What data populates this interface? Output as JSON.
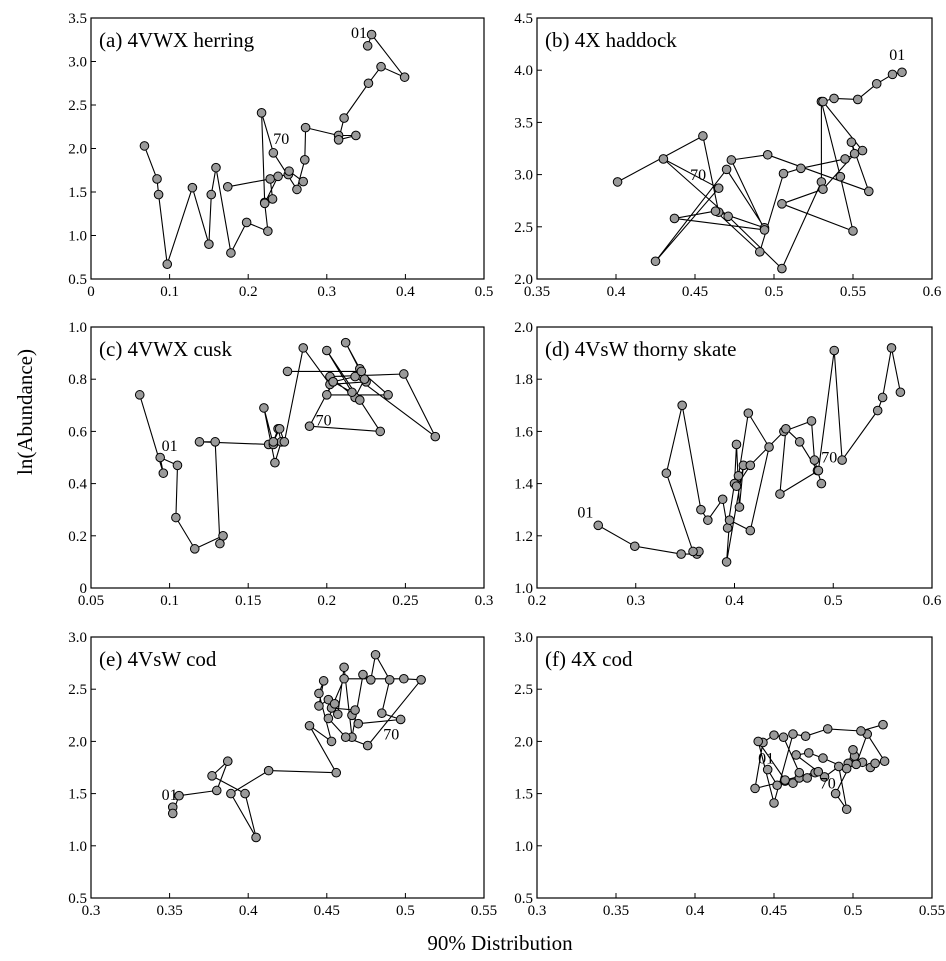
{
  "figure": {
    "ylabel": "ln(Abundance)",
    "xlabel": "90% Distribution"
  },
  "chart_data": [
    {
      "type": "line",
      "title": "(a)  4VWX herring",
      "xlim": [
        0,
        0.5
      ],
      "ylim": [
        0.5,
        3.5
      ],
      "xticks": [
        0,
        0.1,
        0.2,
        0.3,
        0.4,
        0.5
      ],
      "xtick_labels": [
        "0",
        "0.1",
        "0.2",
        "0.3",
        "0.4",
        "0.5"
      ],
      "yticks": [
        0.5,
        1.0,
        1.5,
        2.0,
        2.5,
        3.0,
        3.5
      ],
      "ytick_labels": [
        "0.5",
        "1.0",
        "1.5",
        "2.0",
        "2.5",
        "3.0",
        "3.5"
      ],
      "series": [
        {
          "x": [
            0.174,
            0.228,
            0.231,
            0.221,
            0.217,
            0.232,
            0.262,
            0.272,
            0.273,
            0.315,
            0.337,
            0.315,
            0.322,
            0.353,
            0.369,
            0.399,
            0.357,
            0.352
          ],
          "y": [
            1.56,
            1.65,
            1.42,
            1.38,
            2.41,
            1.95,
            1.53,
            1.87,
            2.24,
            2.15,
            2.15,
            2.1,
            2.35,
            2.75,
            2.94,
            2.82,
            3.31,
            3.18
          ]
        },
        {
          "x": [
            0.068,
            0.084,
            0.086,
            0.097,
            0.129,
            0.15,
            0.153,
            0.159,
            0.178,
            0.198,
            0.225,
            0.221,
            0.238,
            0.251,
            0.252,
            0.27
          ],
          "y": [
            2.03,
            1.65,
            1.47,
            0.67,
            1.55,
            0.9,
            1.47,
            1.78,
            0.8,
            1.15,
            1.05,
            1.37,
            1.68,
            1.7,
            1.74,
            1.62
          ]
        }
      ],
      "annotations": [
        {
          "text": "01",
          "x": 0.341,
          "y": 3.27
        },
        {
          "text": "70",
          "x": 0.242,
          "y": 2.05
        }
      ]
    },
    {
      "type": "line",
      "title": "(b)  4X haddock",
      "xlim": [
        0.35,
        0.6
      ],
      "ylim": [
        2.0,
        4.5
      ],
      "xticks": [
        0.35,
        0.4,
        0.45,
        0.5,
        0.55,
        0.6
      ],
      "xtick_labels": [
        "0.35",
        "0.4",
        "0.45",
        "0.5",
        "0.55",
        "0.6"
      ],
      "yticks": [
        2.0,
        2.5,
        3.0,
        3.5,
        4.0,
        4.5
      ],
      "ytick_labels": [
        "2.0",
        "2.5",
        "3.0",
        "3.5",
        "4.0",
        "4.5"
      ],
      "series": [
        {
          "x": [
            0.401,
            0.455,
            0.465,
            0.494,
            0.47,
            0.425,
            0.465,
            0.43,
            0.471,
            0.505,
            0.53,
            0.53,
            0.542,
            0.55,
            0.505,
            0.531,
            0.551,
            0.549,
            0.56,
            0.496,
            0.473,
            0.494,
            0.437,
            0.463,
            0.491,
            0.506,
            0.517,
            0.545,
            0.556,
            0.531,
            0.538,
            0.553,
            0.565,
            0.575,
            0.581
          ],
          "y": [
            2.93,
            3.37,
            2.64,
            2.49,
            3.05,
            2.17,
            2.87,
            3.15,
            2.6,
            2.1,
            2.93,
            3.7,
            2.98,
            2.46,
            2.72,
            2.86,
            3.2,
            3.31,
            2.84,
            3.19,
            3.14,
            2.47,
            2.58,
            2.65,
            2.26,
            3.01,
            3.06,
            3.15,
            3.23,
            3.7,
            3.73,
            3.72,
            3.87,
            3.96,
            3.98
          ]
        }
      ],
      "annotations": [
        {
          "text": "01",
          "x": 0.578,
          "y": 4.1
        },
        {
          "text": "70",
          "x": 0.452,
          "y": 2.95
        }
      ]
    },
    {
      "type": "line",
      "title": "(c)  4VWX cusk",
      "xlim": [
        0.05,
        0.3
      ],
      "ylim": [
        0,
        1.0
      ],
      "xticks": [
        0.05,
        0.1,
        0.15,
        0.2,
        0.25,
        0.3
      ],
      "xtick_labels": [
        "0.05",
        "0.1",
        "0.15",
        "0.2",
        "0.25",
        "0.3"
      ],
      "yticks": [
        0,
        0.2,
        0.4,
        0.6,
        0.8,
        1.0
      ],
      "ytick_labels": [
        "0",
        "0.2",
        "0.4",
        "0.6",
        "0.8",
        "1.0"
      ],
      "series": [
        {
          "x": [
            0.081,
            0.096,
            0.094,
            0.105,
            0.104,
            0.116,
            0.134,
            0.132,
            0.129,
            0.119,
            0.163,
            0.166,
            0.16,
            0.167,
            0.171,
            0.169,
            0.166,
            0.17,
            0.173,
            0.185,
            0.202,
            0.225,
            0.221,
            0.212,
            0.224,
            0.218,
            0.202,
            0.249,
            0.269,
            0.218,
            0.204,
            0.216,
            0.2,
            0.221,
            0.234,
            0.189,
            0.204,
            0.2,
            0.239,
            0.222,
            0.175
          ],
          "y": [
            0.74,
            0.44,
            0.5,
            0.47,
            0.27,
            0.15,
            0.2,
            0.17,
            0.56,
            0.56,
            0.55,
            0.55,
            0.69,
            0.48,
            0.56,
            0.61,
            0.56,
            0.61,
            0.56,
            0.92,
            0.78,
            0.79,
            0.84,
            0.94,
            0.8,
            0.73,
            0.81,
            0.82,
            0.58,
            0.81,
            0.79,
            0.75,
            0.91,
            0.72,
            0.6,
            0.62,
            0.79,
            0.74,
            0.74,
            0.83,
            0.83
          ]
        }
      ],
      "annotations": [
        {
          "text": "01",
          "x": 0.1,
          "y": 0.525
        },
        {
          "text": "70",
          "x": 0.198,
          "y": 0.622
        }
      ]
    },
    {
      "type": "line",
      "title": "(d)  4VsW thorny skate",
      "xlim": [
        0.2,
        0.6
      ],
      "ylim": [
        1.0,
        2.0
      ],
      "xticks": [
        0.2,
        0.3,
        0.4,
        0.5,
        0.6
      ],
      "xtick_labels": [
        "0.2",
        "0.3",
        "0.4",
        "0.5",
        "0.6"
      ],
      "yticks": [
        1.0,
        1.2,
        1.4,
        1.6,
        1.8,
        2.0
      ],
      "ytick_labels": [
        "1.0",
        "1.2",
        "1.4",
        "1.6",
        "1.8",
        "2.0"
      ],
      "series": [
        {
          "x": [
            0.262,
            0.299,
            0.346,
            0.362,
            0.364,
            0.358,
            0.331,
            0.347,
            0.366,
            0.373,
            0.388,
            0.393,
            0.4,
            0.402,
            0.405,
            0.409,
            0.392,
            0.395,
            0.416,
            0.435,
            0.414,
            0.404,
            0.402,
            0.416,
            0.45,
            0.478,
            0.481,
            0.488,
            0.484,
            0.466,
            0.452,
            0.446,
            0.485,
            0.501,
            0.509,
            0.545,
            0.55,
            0.559,
            0.568
          ],
          "y": [
            1.24,
            1.16,
            1.13,
            1.13,
            1.14,
            1.14,
            1.44,
            1.7,
            1.3,
            1.26,
            1.34,
            1.23,
            1.4,
            1.55,
            1.31,
            1.47,
            1.1,
            1.26,
            1.22,
            1.54,
            1.67,
            1.43,
            1.39,
            1.47,
            1.6,
            1.64,
            1.49,
            1.4,
            1.45,
            1.56,
            1.61,
            1.36,
            1.45,
            1.91,
            1.49,
            1.68,
            1.73,
            1.92,
            1.75
          ]
        }
      ],
      "annotations": [
        {
          "text": "01",
          "x": 0.249,
          "y": 1.27
        },
        {
          "text": "70",
          "x": 0.496,
          "y": 1.48
        }
      ]
    },
    {
      "type": "line",
      "title": "(e)  4VsW cod",
      "xlim": [
        0.3,
        0.55
      ],
      "ylim": [
        0.5,
        3.0
      ],
      "xticks": [
        0.3,
        0.35,
        0.4,
        0.45,
        0.5,
        0.55
      ],
      "xtick_labels": [
        "0.3",
        "0.35",
        "0.4",
        "0.45",
        "0.5",
        "0.55"
      ],
      "yticks": [
        0.5,
        1.0,
        1.5,
        2.0,
        2.5,
        3.0
      ],
      "ytick_labels": [
        "0.5",
        "1.0",
        "1.5",
        "2.0",
        "2.5",
        "3.0"
      ],
      "series": [
        {
          "x": [
            0.352,
            0.352,
            0.356,
            0.38,
            0.387,
            0.377,
            0.398,
            0.405,
            0.389,
            0.413,
            0.456,
            0.439,
            0.453,
            0.445,
            0.448,
            0.445,
            0.451,
            0.457,
            0.461,
            0.466,
            0.473,
            0.478,
            0.481,
            0.49,
            0.485,
            0.497,
            0.47,
            0.466,
            0.468,
            0.453,
            0.461,
            0.499,
            0.51,
            0.476,
            0.462,
            0.451,
            0.455
          ],
          "y": [
            1.37,
            1.31,
            1.48,
            1.53,
            1.81,
            1.67,
            1.5,
            1.08,
            1.5,
            1.72,
            1.7,
            2.15,
            2.0,
            2.46,
            2.58,
            2.34,
            2.4,
            2.26,
            2.71,
            2.04,
            2.64,
            2.59,
            2.83,
            2.59,
            2.27,
            2.21,
            2.17,
            2.25,
            2.3,
            2.32,
            2.6,
            2.6,
            2.59,
            1.96,
            2.04,
            2.22,
            2.36
          ]
        }
      ],
      "annotations": [
        {
          "text": "01",
          "x": 0.35,
          "y": 1.44
        },
        {
          "text": "70",
          "x": 0.491,
          "y": 2.02
        }
      ]
    },
    {
      "type": "line",
      "title": "(f)  4X cod",
      "xlim": [
        0.3,
        0.55
      ],
      "ylim": [
        0.5,
        3.0
      ],
      "xticks": [
        0.3,
        0.35,
        0.4,
        0.45,
        0.5,
        0.55
      ],
      "xtick_labels": [
        "0.3",
        "0.35",
        "0.4",
        "0.45",
        "0.5",
        "0.55"
      ],
      "yticks": [
        0.5,
        1.0,
        1.5,
        2.0,
        2.5,
        3.0
      ],
      "ytick_labels": [
        "0.5",
        "1.0",
        "1.5",
        "2.0",
        "2.5",
        "3.0"
      ],
      "series": [
        {
          "x": [
            0.446,
            0.452,
            0.457,
            0.462,
            0.466,
            0.438,
            0.443,
            0.45,
            0.456,
            0.466,
            0.471,
            0.476,
            0.482,
            0.491,
            0.496,
            0.489,
            0.501,
            0.5,
            0.497,
            0.506,
            0.511,
            0.514,
            0.52,
            0.509,
            0.502,
            0.496,
            0.481,
            0.472,
            0.464,
            0.478,
            0.457,
            0.44,
            0.45,
            0.462,
            0.47,
            0.484,
            0.505,
            0.519
          ],
          "y": [
            1.73,
            1.58,
            1.62,
            1.6,
            1.65,
            1.55,
            1.99,
            2.06,
            2.04,
            1.7,
            1.65,
            1.7,
            1.66,
            1.76,
            1.35,
            1.5,
            1.86,
            1.92,
            1.79,
            1.8,
            1.75,
            1.79,
            1.81,
            2.07,
            1.78,
            1.74,
            1.84,
            1.89,
            1.87,
            1.71,
            1.63,
            2.0,
            1.41,
            2.07,
            2.05,
            2.12,
            2.1,
            2.16
          ]
        }
      ],
      "annotations": [
        {
          "text": "01",
          "x": 0.445,
          "y": 1.79
        },
        {
          "text": "70",
          "x": 0.484,
          "y": 1.55
        }
      ]
    }
  ]
}
